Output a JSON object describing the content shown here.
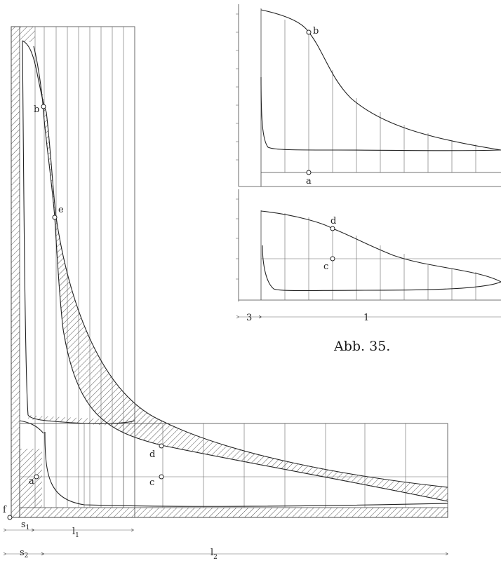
{
  "figure": {
    "caption": "Abb. 35."
  },
  "main_diagram": {
    "point_labels": [
      "b",
      "e",
      "d",
      "c",
      "a",
      "f"
    ],
    "dimensions": {
      "s1": {
        "base": "s",
        "sub": "1"
      },
      "s2": {
        "base": "s",
        "sub": "2"
      },
      "l1": {
        "base": "l",
        "sub": "1"
      },
      "l2": {
        "base": "l",
        "sub": "2"
      }
    }
  },
  "inset_top": {
    "point_labels": [
      "b",
      "a"
    ]
  },
  "inset_bottom": {
    "point_labels": [
      "d",
      "c"
    ],
    "dimensions": {
      "left": "3",
      "right": "1"
    }
  },
  "colors": {
    "line": "#444444",
    "curve": "#222222",
    "hatch": "#555555"
  }
}
